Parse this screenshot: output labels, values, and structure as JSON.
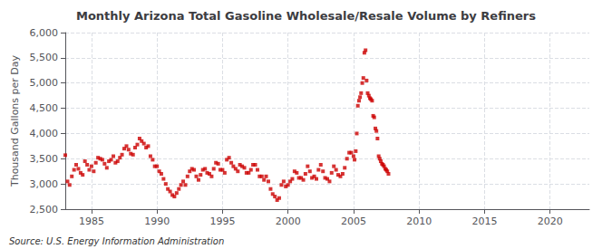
{
  "chart_data": {
    "type": "scatter",
    "title": "Monthly Arizona Total Gasoline Wholesale/Resale Volume by Refiners",
    "ylabel": "Thousand Gallons per Day",
    "annotations": [
      "Source: U.S. Energy Information Administration"
    ],
    "color": "#CC0000",
    "marker": "square",
    "grid": true,
    "xlim": [
      1983,
      2023
    ],
    "ylim": [
      2500,
      6000
    ],
    "xticks": [
      1985,
      1990,
      1995,
      2000,
      2005,
      2010,
      2015,
      2020
    ],
    "yticks": [
      {
        "value": 2500,
        "label": "2,500"
      },
      {
        "value": 3000,
        "label": "3,000"
      },
      {
        "value": 3500,
        "label": "3,500"
      },
      {
        "value": 4000,
        "label": "4,000"
      },
      {
        "value": 4500,
        "label": "4,500"
      },
      {
        "value": 5000,
        "label": "5,000"
      },
      {
        "value": 5500,
        "label": "5,500"
      },
      {
        "value": 6000,
        "label": "6,000"
      }
    ],
    "x": [
      1983.0,
      1983.17,
      1983.33,
      1983.5,
      1983.67,
      1983.83,
      1984.0,
      1984.17,
      1984.33,
      1984.5,
      1984.67,
      1984.83,
      1985.0,
      1985.17,
      1985.33,
      1985.5,
      1985.67,
      1985.83,
      1986.0,
      1986.17,
      1986.33,
      1986.5,
      1986.67,
      1986.83,
      1987.0,
      1987.17,
      1987.33,
      1987.5,
      1987.67,
      1987.83,
      1988.0,
      1988.17,
      1988.33,
      1988.5,
      1988.67,
      1988.83,
      1989.0,
      1989.17,
      1989.33,
      1989.5,
      1989.67,
      1989.83,
      1990.0,
      1990.17,
      1990.33,
      1990.5,
      1990.67,
      1990.83,
      1991.0,
      1991.17,
      1991.33,
      1991.5,
      1991.67,
      1991.83,
      1992.0,
      1992.17,
      1992.33,
      1992.5,
      1992.67,
      1992.83,
      1993.0,
      1993.17,
      1993.33,
      1993.5,
      1993.67,
      1993.83,
      1994.0,
      1994.17,
      1994.33,
      1994.5,
      1994.67,
      1994.83,
      1995.0,
      1995.17,
      1995.33,
      1995.5,
      1995.67,
      1995.83,
      1996.0,
      1996.17,
      1996.33,
      1996.5,
      1996.67,
      1996.83,
      1997.0,
      1997.17,
      1997.33,
      1997.5,
      1997.67,
      1997.83,
      1998.0,
      1998.17,
      1998.33,
      1998.5,
      1998.67,
      1998.83,
      1999.0,
      1999.17,
      1999.33,
      1999.5,
      1999.67,
      1999.83,
      2000.0,
      2000.17,
      2000.33,
      2000.5,
      2000.67,
      2000.83,
      2001.0,
      2001.17,
      2001.33,
      2001.5,
      2001.67,
      2001.83,
      2002.0,
      2002.17,
      2002.33,
      2002.5,
      2002.67,
      2002.83,
      2003.0,
      2003.17,
      2003.33,
      2003.5,
      2003.67,
      2003.83,
      2004.0,
      2004.17,
      2004.33,
      2004.5,
      2004.67,
      2004.83,
      2005.0,
      2005.08,
      2005.17,
      2005.25,
      2005.33,
      2005.42,
      2005.5,
      2005.58,
      2005.67,
      2005.75,
      2005.83,
      2005.92,
      2006.0,
      2006.08,
      2006.17,
      2006.25,
      2006.33,
      2006.42,
      2006.5,
      2006.58,
      2006.67,
      2006.75,
      2006.83,
      2006.92,
      2007.0,
      2007.08,
      2007.17,
      2007.25,
      2007.33,
      2007.42,
      2007.5,
      2007.58,
      2007.67
    ],
    "values": [
      3570,
      3050,
      2980,
      3150,
      3280,
      3380,
      3300,
      3220,
      3180,
      3450,
      3380,
      3280,
      3350,
      3250,
      3420,
      3520,
      3500,
      3480,
      3400,
      3320,
      3450,
      3480,
      3550,
      3420,
      3450,
      3520,
      3580,
      3700,
      3750,
      3680,
      3600,
      3580,
      3720,
      3780,
      3900,
      3850,
      3800,
      3720,
      3750,
      3550,
      3480,
      3350,
      3350,
      3250,
      3200,
      3100,
      3000,
      2900,
      2850,
      2780,
      2750,
      2820,
      2900,
      2980,
      3050,
      2980,
      3150,
      3250,
      3300,
      3280,
      3150,
      3080,
      3180,
      3280,
      3300,
      3220,
      3200,
      3150,
      3300,
      3420,
      3400,
      3280,
      3280,
      3220,
      3480,
      3520,
      3420,
      3350,
      3300,
      3250,
      3380,
      3350,
      3320,
      3220,
      3220,
      3280,
      3380,
      3380,
      3280,
      3150,
      3150,
      3080,
      3150,
      3050,
      2900,
      2800,
      2750,
      2680,
      2720,
      2980,
      3050,
      2950,
      2980,
      3050,
      3100,
      3250,
      3220,
      3120,
      3120,
      3080,
      3200,
      3350,
      3250,
      3120,
      3150,
      3100,
      3280,
      3380,
      3250,
      3120,
      3100,
      3050,
      3220,
      3350,
      3280,
      3180,
      3150,
      3200,
      3320,
      3500,
      3620,
      3620,
      3550,
      3480,
      3650,
      4000,
      4550,
      4650,
      4720,
      4800,
      5000,
      5100,
      5600,
      5650,
      5050,
      4800,
      4750,
      4700,
      4680,
      4650,
      4350,
      4320,
      4100,
      4050,
      3900,
      3550,
      3500,
      3450,
      3400,
      3380,
      3350,
      3300,
      3280,
      3250,
      3200
    ]
  }
}
